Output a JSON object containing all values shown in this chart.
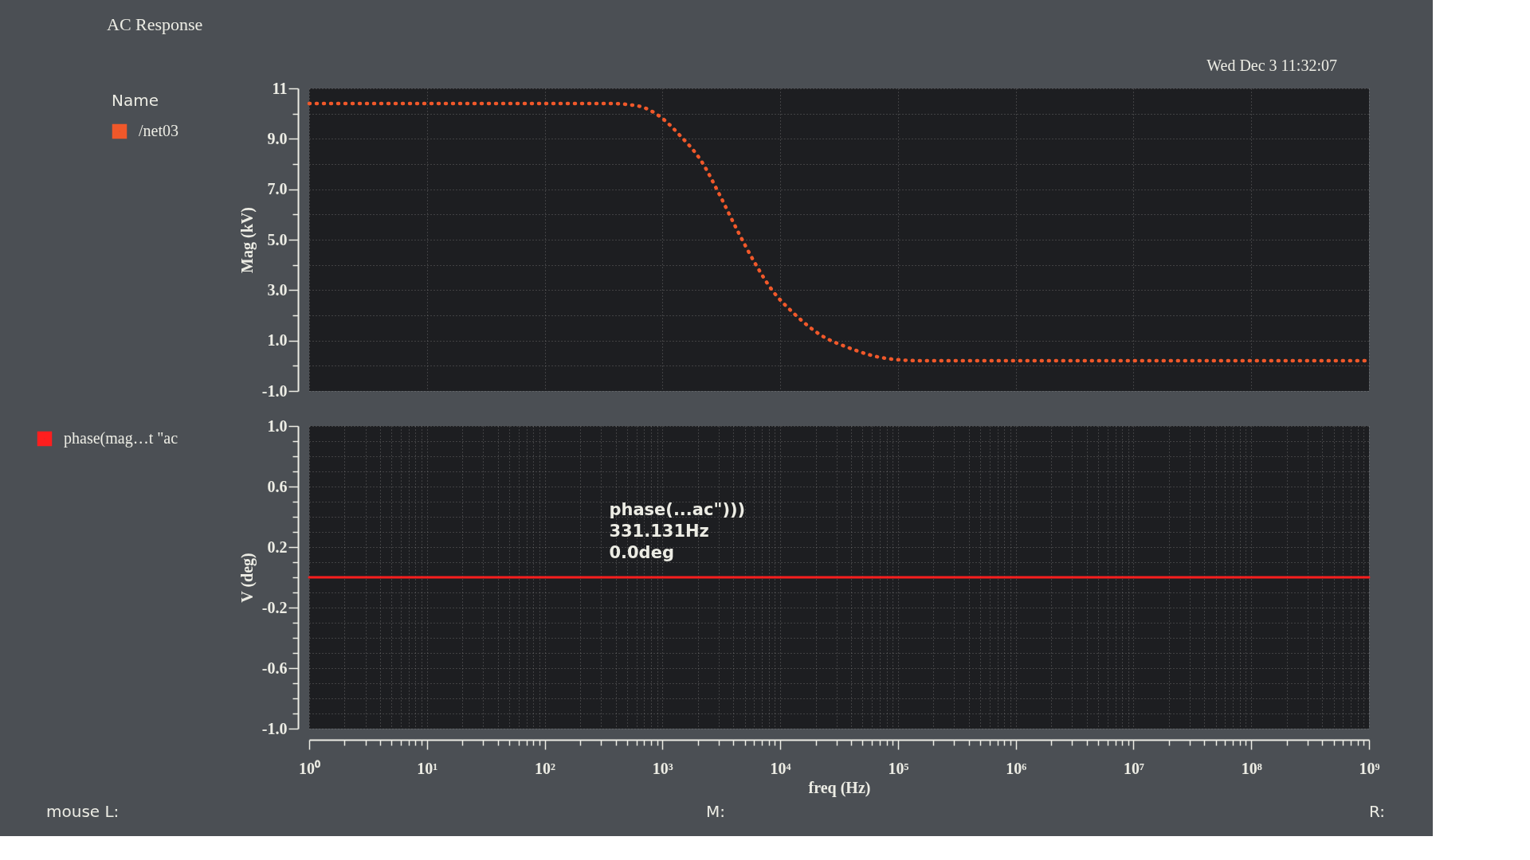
{
  "chart_data": [
    {
      "type": "line",
      "title": "AC Response",
      "ylabel": "Mag (kV)",
      "legend_title": "Name",
      "x": [
        1,
        100,
        359,
        622,
        942,
        1430,
        2150,
        3040,
        4290,
        6050,
        8530,
        12900,
        22400,
        38900,
        77500,
        154000,
        1000000,
        1000000000
      ],
      "series": [
        {
          "name": "/net03",
          "color": "#f0582a",
          "values": [
            10.4,
            10.4,
            10.4,
            10.3,
            9.9,
            9.1,
            8.1,
            6.8,
            5.4,
            4.1,
            3.0,
            2.1,
            1.2,
            0.7,
            0.3,
            0.2,
            0.2,
            0.2
          ]
        }
      ],
      "xlim": [
        1,
        1000000000
      ],
      "xticks": [
        1,
        10,
        100,
        1000,
        10000,
        100000,
        1000000,
        10000000,
        100000000,
        1000000000
      ],
      "ylim": [
        -1,
        11
      ],
      "yticks": [
        {
          "value": -1,
          "label": "-1.0"
        },
        {
          "value": 0,
          "label": null
        },
        {
          "value": 1,
          "label": "1.0"
        },
        {
          "value": 2,
          "label": null
        },
        {
          "value": 3,
          "label": "3.0"
        },
        {
          "value": 4,
          "label": null
        },
        {
          "value": 5,
          "label": "5.0"
        },
        {
          "value": 6,
          "label": null
        },
        {
          "value": 7,
          "label": "7.0"
        },
        {
          "value": 8,
          "label": null
        },
        {
          "value": 9,
          "label": "9.0"
        },
        {
          "value": 10,
          "label": null
        },
        11
      ],
      "log": "x",
      "grid": true,
      "legend": "left",
      "tick_labels": "y",
      "line_style": "dotted",
      "annotations": [
        "Wed Dec 3 11:32:07"
      ]
    },
    {
      "type": "line",
      "xlabel": "freq (Hz)",
      "ylabel": "V (deg)",
      "x": [
        1,
        1000000000
      ],
      "series": [
        {
          "name": "phase(mag…t \"ac",
          "color": "#ff1e1e",
          "values": [
            0,
            0
          ]
        }
      ],
      "xlim": [
        1,
        1000000000
      ],
      "xticks": [
        {
          "value": 1,
          "label": "10⁰"
        },
        {
          "value": 2,
          "label": null
        },
        {
          "value": 3,
          "label": null
        },
        {
          "value": 4,
          "label": null
        },
        {
          "value": 5,
          "label": null
        },
        {
          "value": 6,
          "label": null
        },
        {
          "value": 7,
          "label": null
        },
        {
          "value": 8,
          "label": null
        },
        {
          "value": 9,
          "label": null
        },
        {
          "value": 10,
          "label": "10¹"
        },
        {
          "value": 20,
          "label": null
        },
        {
          "value": 30,
          "label": null
        },
        {
          "value": 40,
          "label": null
        },
        {
          "value": 50,
          "label": null
        },
        {
          "value": 60,
          "label": null
        },
        {
          "value": 70,
          "label": null
        },
        {
          "value": 80,
          "label": null
        },
        {
          "value": 90,
          "label": null
        },
        {
          "value": 100,
          "label": "10²"
        },
        {
          "value": 200,
          "label": null
        },
        {
          "value": 300,
          "label": null
        },
        {
          "value": 400,
          "label": null
        },
        {
          "value": 500,
          "label": null
        },
        {
          "value": 600,
          "label": null
        },
        {
          "value": 700,
          "label": null
        },
        {
          "value": 800,
          "label": null
        },
        {
          "value": 900,
          "label": null
        },
        {
          "value": 1000,
          "label": "10³"
        },
        {
          "value": 2000,
          "label": null
        },
        {
          "value": 3000,
          "label": null
        },
        {
          "value": 4000,
          "label": null
        },
        {
          "value": 5000,
          "label": null
        },
        {
          "value": 6000,
          "label": null
        },
        {
          "value": 7000,
          "label": null
        },
        {
          "value": 8000,
          "label": null
        },
        {
          "value": 9000,
          "label": null
        },
        {
          "value": 10000,
          "label": "10⁴"
        },
        {
          "value": 20000,
          "label": null
        },
        {
          "value": 30000,
          "label": null
        },
        {
          "value": 40000,
          "label": null
        },
        {
          "value": 50000,
          "label": null
        },
        {
          "value": 60000,
          "label": null
        },
        {
          "value": 70000,
          "label": null
        },
        {
          "value": 80000,
          "label": null
        },
        {
          "value": 90000,
          "label": null
        },
        {
          "value": 100000,
          "label": "10⁵"
        },
        {
          "value": 200000,
          "label": null
        },
        {
          "value": 300000,
          "label": null
        },
        {
          "value": 400000,
          "label": null
        },
        {
          "value": 500000,
          "label": null
        },
        {
          "value": 600000,
          "label": null
        },
        {
          "value": 700000,
          "label": null
        },
        {
          "value": 800000,
          "label": null
        },
        {
          "value": 900000,
          "label": null
        },
        {
          "value": 1000000,
          "label": "10⁶"
        },
        {
          "value": 2000000,
          "label": null
        },
        {
          "value": 3000000,
          "label": null
        },
        {
          "value": 4000000,
          "label": null
        },
        {
          "value": 5000000,
          "label": null
        },
        {
          "value": 6000000,
          "label": null
        },
        {
          "value": 7000000,
          "label": null
        },
        {
          "value": 8000000,
          "label": null
        },
        {
          "value": 9000000,
          "label": null
        },
        {
          "value": 10000000,
          "label": "10⁷"
        },
        {
          "value": 20000000,
          "label": null
        },
        {
          "value": 30000000,
          "label": null
        },
        {
          "value": 40000000,
          "label": null
        },
        {
          "value": 50000000,
          "label": null
        },
        {
          "value": 60000000,
          "label": null
        },
        {
          "value": 70000000,
          "label": null
        },
        {
          "value": 80000000,
          "label": null
        },
        {
          "value": 90000000,
          "label": null
        },
        {
          "value": 100000000,
          "label": "10⁸"
        },
        {
          "value": 200000000,
          "label": null
        },
        {
          "value": 300000000,
          "label": null
        },
        {
          "value": 400000000,
          "label": null
        },
        {
          "value": 500000000,
          "label": null
        },
        {
          "value": 600000000,
          "label": null
        },
        {
          "value": 700000000,
          "label": null
        },
        {
          "value": 800000000,
          "label": null
        },
        {
          "value": 900000000,
          "label": null
        },
        {
          "value": 1000000000,
          "label": "10⁹"
        }
      ],
      "ylim": [
        -1,
        1
      ],
      "yticks": [
        {
          "value": -1,
          "label": "-1.0"
        },
        {
          "value": -0.9,
          "label": null
        },
        {
          "value": -0.8,
          "label": null
        },
        {
          "value": -0.7,
          "label": null
        },
        -0.6,
        {
          "value": -0.5,
          "label": null
        },
        {
          "value": -0.4,
          "label": null
        },
        {
          "value": -0.3,
          "label": null
        },
        -0.2,
        {
          "value": -0.1,
          "label": null
        },
        {
          "value": 0,
          "label": null
        },
        {
          "value": 0.1,
          "label": null
        },
        0.2,
        {
          "value": 0.3,
          "label": null
        },
        {
          "value": 0.4,
          "label": null
        },
        {
          "value": 0.5,
          "label": null
        },
        0.6,
        {
          "value": 0.7,
          "label": null
        },
        {
          "value": 0.8,
          "label": null
        },
        {
          "value": 0.9,
          "label": null
        },
        {
          "value": 1,
          "label": "1.0"
        }
      ],
      "log": "x",
      "grid": true,
      "legend": "left",
      "line_style": "solid",
      "annotations": [
        {
          "text": "phase(...ac\")))\n331.131Hz\n0.0deg",
          "x": 331.131,
          "y": 0
        },
        "mouse L:",
        "M:",
        "R:"
      ]
    }
  ]
}
